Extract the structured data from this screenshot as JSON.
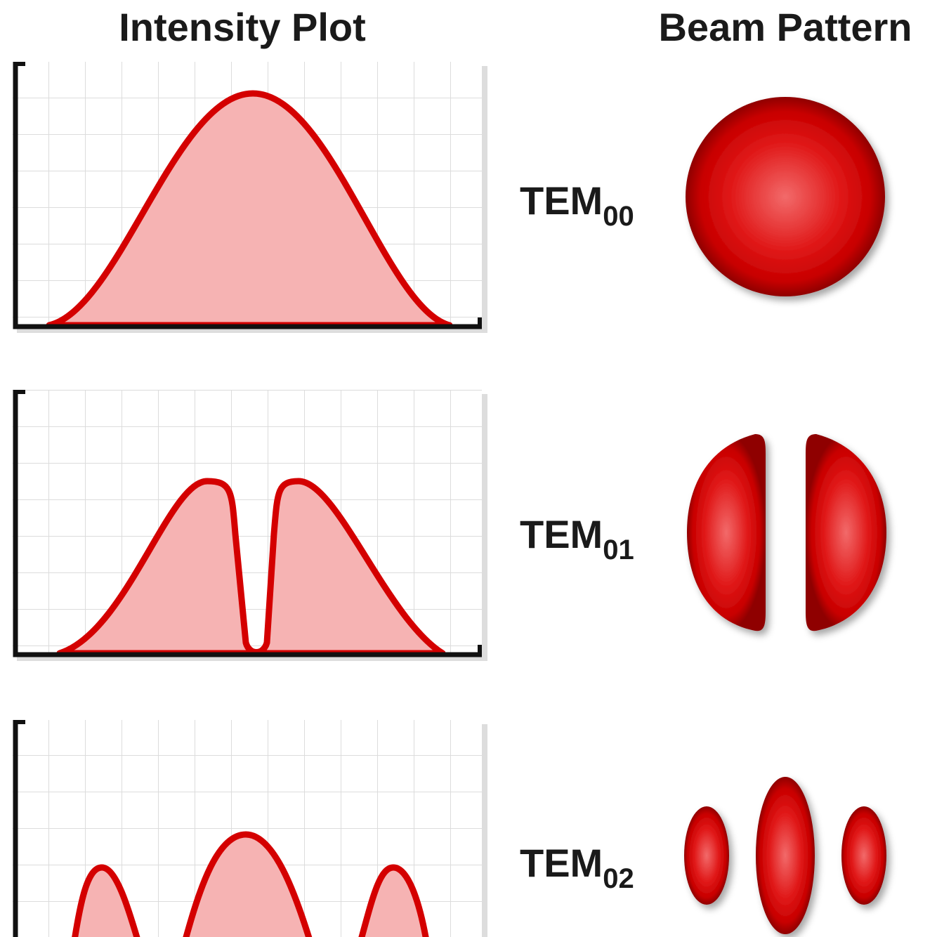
{
  "headers": {
    "left": "Intensity Plot",
    "right": "Beam Pattern"
  },
  "modes": [
    {
      "label": "TEM",
      "subscript": "00"
    },
    {
      "label": "TEM",
      "subscript": "01"
    },
    {
      "label": "TEM",
      "subscript": "02"
    }
  ]
}
